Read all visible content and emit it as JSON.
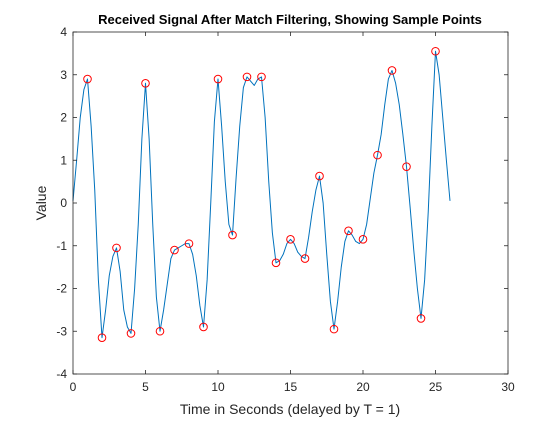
{
  "chart_data": {
    "type": "line",
    "title": "Received Signal After Match Filtering, Showing Sample Points",
    "xlabel": "Time in Seconds (delayed by T = 1)",
    "ylabel": "Value",
    "xlim": [
      0,
      30
    ],
    "ylim": [
      -4,
      4
    ],
    "xticks": [
      0,
      5,
      10,
      15,
      20,
      25,
      30
    ],
    "yticks": [
      -4,
      -3,
      -2,
      -1,
      0,
      1,
      2,
      3,
      4
    ],
    "grid": false,
    "series": [
      {
        "kind": "line",
        "color": "#0072BD",
        "x": [
          0,
          0.25,
          0.5,
          0.75,
          1.0,
          1.25,
          1.5,
          1.75,
          2.0,
          2.25,
          2.5,
          2.75,
          3.0,
          3.25,
          3.5,
          3.75,
          4.0,
          4.25,
          4.5,
          4.75,
          5.0,
          5.25,
          5.5,
          5.75,
          6.0,
          6.25,
          6.5,
          6.75,
          7.0,
          7.25,
          7.5,
          7.75,
          8.0,
          8.25,
          8.5,
          8.75,
          9.0,
          9.25,
          9.5,
          9.75,
          10.0,
          10.25,
          10.5,
          10.75,
          11.0,
          11.25,
          11.5,
          11.75,
          12.0,
          12.25,
          12.5,
          12.75,
          13.0,
          13.25,
          13.5,
          13.75,
          14.0,
          14.25,
          14.5,
          14.75,
          15.0,
          15.25,
          15.5,
          15.75,
          16.0,
          16.25,
          16.5,
          16.75,
          17.0,
          17.25,
          17.5,
          17.75,
          18.0,
          18.25,
          18.5,
          18.75,
          19.0,
          19.25,
          19.5,
          19.75,
          20.0,
          20.25,
          20.5,
          20.75,
          21.0,
          21.25,
          21.5,
          21.75,
          22.0,
          22.25,
          22.5,
          22.75,
          23.0,
          23.25,
          23.5,
          23.75,
          24.0,
          24.25,
          24.5,
          24.75,
          25.0,
          25.25,
          25.5,
          25.75,
          26.0
        ],
        "y": [
          0.05,
          1.0,
          2.0,
          2.65,
          2.9,
          1.8,
          0.3,
          -1.8,
          -3.15,
          -2.5,
          -1.7,
          -1.25,
          -1.05,
          -1.6,
          -2.5,
          -2.9,
          -3.05,
          -2.0,
          -0.5,
          1.5,
          2.8,
          1.5,
          -0.5,
          -2.2,
          -3.0,
          -2.5,
          -1.9,
          -1.3,
          -1.1,
          -1.05,
          -1.0,
          -0.95,
          -0.95,
          -1.2,
          -1.7,
          -2.4,
          -2.9,
          -1.8,
          0.0,
          1.9,
          2.9,
          1.8,
          0.5,
          -0.5,
          -0.75,
          0.6,
          1.8,
          2.7,
          2.95,
          2.85,
          2.75,
          2.9,
          2.95,
          2.0,
          0.5,
          -0.7,
          -1.4,
          -1.35,
          -1.2,
          -0.95,
          -0.85,
          -0.95,
          -1.15,
          -1.25,
          -1.3,
          -0.8,
          -0.2,
          0.3,
          0.63,
          0.0,
          -1.2,
          -2.3,
          -2.95,
          -2.3,
          -1.5,
          -0.9,
          -0.65,
          -0.75,
          -0.9,
          -0.95,
          -0.85,
          -0.5,
          0.1,
          0.7,
          1.12,
          1.6,
          2.3,
          2.9,
          3.1,
          2.8,
          2.3,
          1.6,
          0.85,
          -0.1,
          -1.1,
          -2.0,
          -2.7,
          -1.8,
          -0.2,
          1.8,
          3.55,
          3.0,
          2.0,
          1.0,
          0.05
        ]
      },
      {
        "kind": "markers",
        "marker": "circle-open",
        "color": "#FF0000",
        "x": [
          1,
          2,
          3,
          4,
          5,
          6,
          7,
          8,
          9,
          10,
          11,
          12,
          13,
          14,
          15,
          16,
          17,
          18,
          19,
          20,
          21,
          22,
          23,
          24,
          25
        ],
        "y": [
          2.9,
          -3.15,
          -1.05,
          -3.05,
          2.8,
          -3.0,
          -1.1,
          -0.95,
          -2.9,
          2.9,
          -0.75,
          2.95,
          2.95,
          -1.4,
          -0.85,
          -1.3,
          0.63,
          -2.95,
          -0.65,
          -0.85,
          1.12,
          3.1,
          0.85,
          -2.7,
          3.55
        ]
      }
    ]
  }
}
